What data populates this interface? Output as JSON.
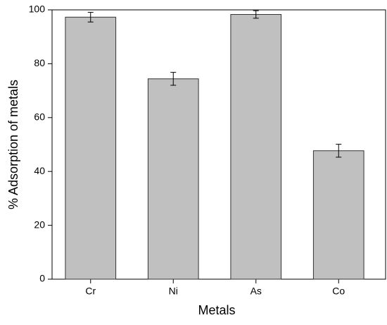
{
  "chart_data": {
    "type": "bar",
    "x_label": "Metals",
    "y_label": "% Adsorption of metals",
    "categories": [
      "Cr",
      "Ni",
      "As",
      "Co"
    ],
    "values": [
      97.3,
      74.4,
      98.3,
      47.7
    ],
    "errors": [
      1.8,
      2.4,
      1.4,
      2.4
    ],
    "color": "#c0c0c0",
    "ylim": [
      0,
      100
    ],
    "yticks": [
      0,
      20,
      40,
      60,
      80,
      100
    ],
    "grid": false
  }
}
